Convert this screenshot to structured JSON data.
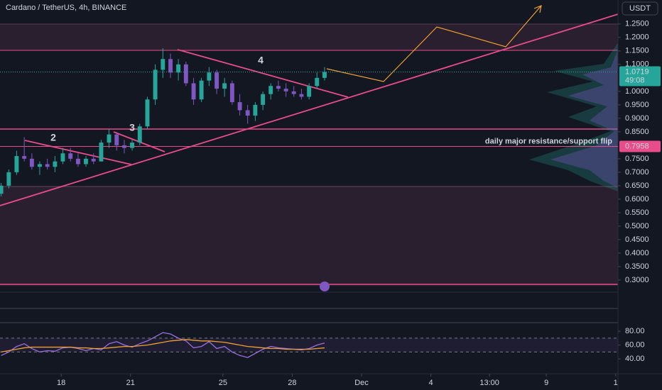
{
  "chart_data": {
    "type": "candlestick",
    "title": "Cardano / TetherUS, 4h, BINANCE",
    "currency_button": "USDT",
    "xlim": [
      15.35,
      42.1
    ],
    "xticks": [
      18,
      21,
      25,
      28,
      {
        "value": 31,
        "label": "Dec"
      },
      {
        "value": 34,
        "label": "4"
      },
      {
        "value": 36.54,
        "label": "13:00"
      },
      {
        "value": 39,
        "label": "9"
      },
      {
        "value": 42,
        "label": "1"
      }
    ],
    "ylim": [
      0.255,
      1.339
    ],
    "yticks": [
      {
        "value": 1.25,
        "label": "1.2500"
      },
      {
        "value": 1.2,
        "label": "1.2000"
      },
      {
        "value": 1.15,
        "label": "1.1500"
      },
      {
        "value": 1.1,
        "label": "1.1000"
      },
      {
        "value": 1.0,
        "label": "1.0000"
      },
      {
        "value": 0.95,
        "label": "0.9500"
      },
      {
        "value": 0.9,
        "label": "0.9000"
      },
      {
        "value": 0.85,
        "label": "0.8500"
      },
      {
        "value": 0.75,
        "label": "0.7500"
      },
      {
        "value": 0.7,
        "label": "0.7000"
      },
      {
        "value": 0.65,
        "label": "0.6500"
      },
      {
        "value": 0.6,
        "label": "0.6000"
      },
      {
        "value": 0.55,
        "label": "0.5500"
      },
      {
        "value": 0.5,
        "label": "0.5000"
      },
      {
        "value": 0.45,
        "label": "0.4500"
      },
      {
        "value": 0.4,
        "label": "0.4000"
      },
      {
        "value": 0.35,
        "label": "0.3500"
      },
      {
        "value": 0.3,
        "label": "0.3000"
      }
    ],
    "up_color": "#26a69a",
    "down_color": "#7e57c2",
    "candles": {
      "t": [
        15.4,
        15.73,
        16.07,
        16.4,
        16.73,
        17.07,
        17.4,
        17.73,
        18.07,
        18.4,
        18.73,
        19.07,
        19.4,
        19.73,
        20.07,
        20.4,
        20.73,
        21.07,
        21.4,
        21.73,
        22.07,
        22.4,
        22.73,
        23.07,
        23.4,
        23.73,
        24.07,
        24.4,
        24.73,
        25.07,
        25.4,
        25.73,
        26.07,
        26.4,
        26.73,
        27.07,
        27.4,
        27.73,
        28.07,
        28.4,
        28.73,
        29.07,
        29.4
      ],
      "open": [
        0.62,
        0.65,
        0.7,
        0.76,
        0.75,
        0.72,
        0.73,
        0.72,
        0.74,
        0.77,
        0.75,
        0.73,
        0.75,
        0.74,
        0.81,
        0.84,
        0.8,
        0.79,
        0.81,
        0.87,
        0.97,
        1.08,
        1.12,
        1.07,
        1.1,
        1.03,
        0.97,
        1.04,
        1.07,
        1.01,
        1.03,
        0.96,
        0.93,
        0.91,
        0.95,
        0.99,
        1.02,
        1.01,
        1.0,
        0.99,
        0.98,
        1.02,
        1.05
      ],
      "high": [
        0.66,
        0.71,
        0.78,
        0.83,
        0.77,
        0.74,
        0.75,
        0.76,
        0.79,
        0.79,
        0.77,
        0.76,
        0.77,
        0.82,
        0.86,
        0.85,
        0.82,
        0.82,
        0.88,
        0.98,
        1.1,
        1.16,
        1.14,
        1.12,
        1.11,
        1.05,
        1.05,
        1.09,
        1.08,
        1.05,
        1.04,
        0.99,
        0.95,
        0.96,
        1.0,
        1.03,
        1.04,
        1.03,
        1.02,
        1.01,
        1.03,
        1.07,
        1.09
      ],
      "low": [
        0.61,
        0.64,
        0.69,
        0.74,
        0.71,
        0.69,
        0.71,
        0.7,
        0.73,
        0.74,
        0.72,
        0.72,
        0.73,
        0.74,
        0.79,
        0.78,
        0.77,
        0.78,
        0.8,
        0.86,
        0.95,
        1.05,
        1.05,
        1.04,
        1.02,
        0.95,
        0.96,
        1.02,
        0.99,
        0.98,
        0.95,
        0.91,
        0.88,
        0.89,
        0.93,
        0.97,
        1.0,
        0.98,
        0.98,
        0.97,
        0.97,
        1.01,
        1.04
      ],
      "close": [
        0.65,
        0.7,
        0.76,
        0.75,
        0.72,
        0.73,
        0.72,
        0.74,
        0.77,
        0.75,
        0.73,
        0.75,
        0.74,
        0.81,
        0.84,
        0.8,
        0.79,
        0.81,
        0.87,
        0.97,
        1.08,
        1.12,
        1.07,
        1.1,
        1.03,
        0.97,
        1.04,
        1.07,
        1.01,
        1.03,
        0.96,
        0.93,
        0.91,
        0.95,
        0.99,
        1.02,
        1.01,
        1.0,
        0.99,
        0.98,
        1.02,
        1.05,
        1.0719
      ]
    },
    "last_price": 1.0719,
    "countdown": "49:08",
    "level": 0.7958,
    "level_note": "daily major resistance/support flip",
    "wave_labels": [
      "2",
      "3",
      "4"
    ],
    "rsi": {
      "ylim": [
        18.7,
        92.4
      ],
      "yticks": [
        {
          "value": 80,
          "label": "80.00"
        },
        {
          "value": 60,
          "label": "60.00"
        },
        {
          "value": 40,
          "label": "40.00"
        }
      ],
      "band": [
        50,
        70
      ],
      "series": [
        {
          "color": "#9c6ee0",
          "values": [
            45,
            50,
            58,
            62,
            55,
            50,
            52,
            51,
            56,
            57,
            55,
            52,
            55,
            53,
            62,
            65,
            60,
            57,
            62,
            66,
            72,
            78,
            76,
            70,
            66,
            56,
            58,
            65,
            55,
            58,
            50,
            45,
            42,
            48,
            54,
            58,
            56,
            55,
            54,
            53,
            55,
            60,
            63
          ]
        },
        {
          "color": "#f0a030",
          "values": [
            50,
            52,
            54,
            56,
            57,
            57,
            57,
            57,
            57,
            57,
            56,
            56,
            55,
            55,
            56,
            57,
            58,
            58,
            59,
            60,
            62,
            64,
            66,
            67,
            68,
            67,
            66,
            66,
            65,
            64,
            62,
            60,
            58,
            57,
            56,
            55,
            55,
            54,
            54,
            54,
            54,
            55,
            56
          ]
        }
      ]
    }
  }
}
